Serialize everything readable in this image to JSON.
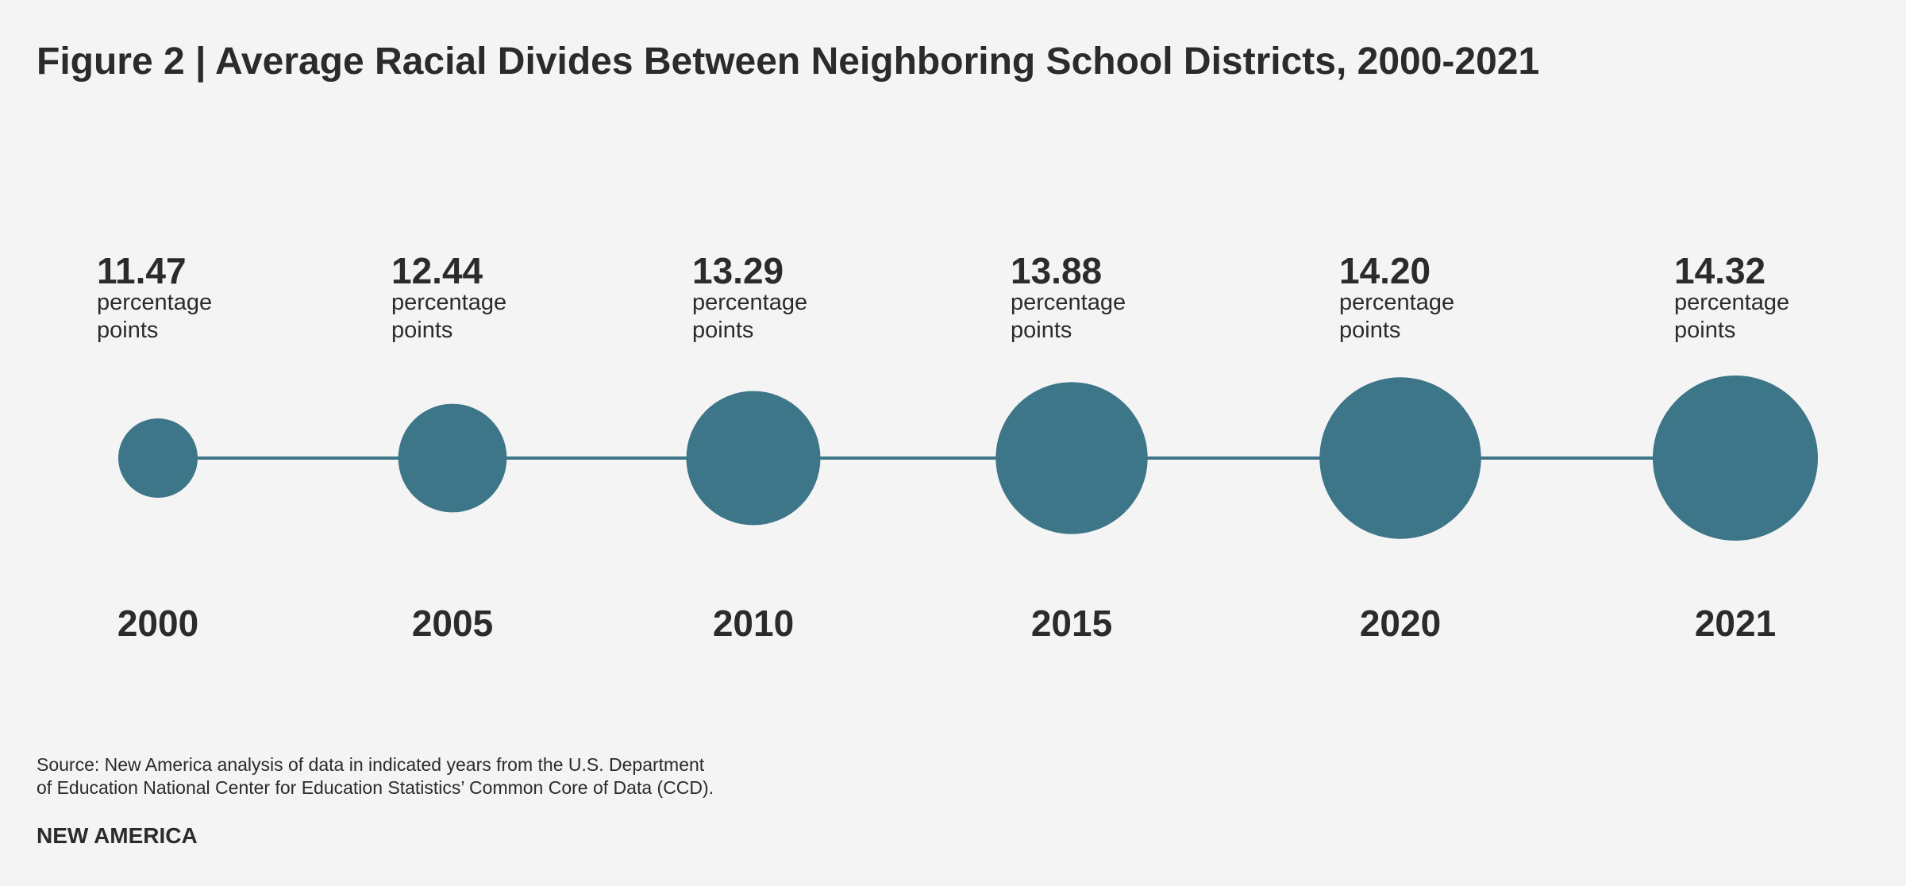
{
  "chart_data": {
    "type": "bubble-timeline",
    "title": "Figure 2 | Average Racial Divides Between Neighboring School Districts, 2000-2021",
    "categories": [
      "2000",
      "2005",
      "2010",
      "2015",
      "2020",
      "2021"
    ],
    "values": [
      11.47,
      12.44,
      13.29,
      13.88,
      14.2,
      14.32
    ],
    "value_labels": [
      "11.47",
      "12.44",
      "13.29",
      "13.88",
      "14.20",
      "14.32"
    ],
    "unit_label": "percentage points",
    "color": "#3d7589",
    "source": [
      "Source: New America analysis of data in indicated years from the U.S. Department",
      "of Education National Center for Education Statistics’ Common Core of Data (CCD)."
    ],
    "brand": "NEW AMERICA"
  }
}
